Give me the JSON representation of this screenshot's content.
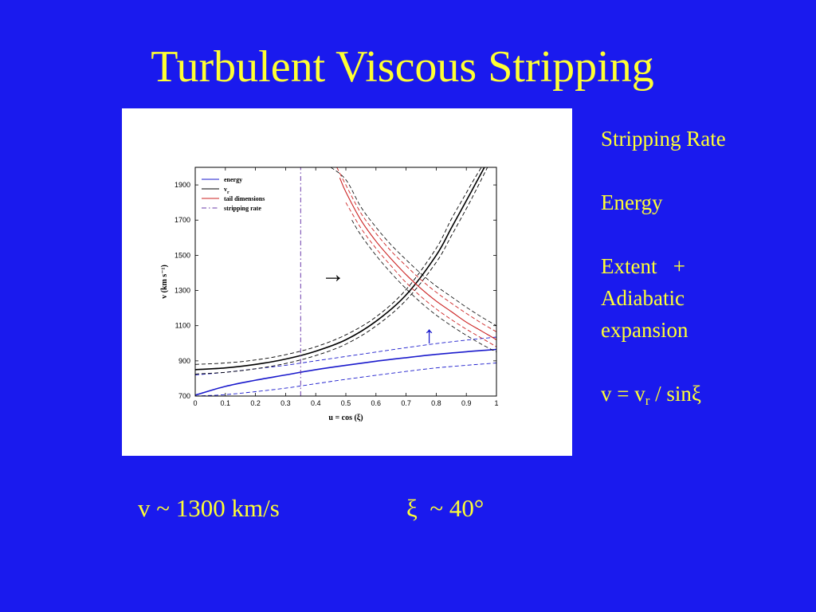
{
  "slide": {
    "title": "Turbulent Viscous Stripping",
    "side_notes": {
      "stripping_rate": "Stripping Rate",
      "energy": "Energy",
      "extent_plus": "Extent   +",
      "adiabatic": "Adiabatic",
      "expansion": "expansion",
      "formula_prefix": "v = v",
      "formula_sub": "r",
      "formula_suffix": " / sinξ"
    },
    "bottom": {
      "velocity": "v ~ 1300 km/s",
      "angle": "ξ  ~ 40°"
    },
    "annotations": {
      "right_arrow": "→",
      "up_arrow": "↑"
    }
  },
  "chart_data": {
    "type": "line",
    "xlabel": "u = cos (ξ)",
    "ylabel": "v (km s⁻¹)",
    "xlim": [
      0,
      1
    ],
    "ylim": [
      700,
      2000
    ],
    "xticks": [
      0,
      0.1,
      0.2,
      0.3,
      0.4,
      0.5,
      0.6,
      0.7,
      0.8,
      0.9,
      1
    ],
    "xtick_labels": [
      "0",
      "0.1",
      "0.2",
      "0.3",
      "0.4",
      "0.5",
      "0.6",
      "0.7",
      "0.8",
      "0.9",
      "1"
    ],
    "yticks": [
      700,
      900,
      1100,
      1300,
      1500,
      1700,
      1900
    ],
    "ytick_labels": [
      "700",
      "900",
      "1100",
      "1300",
      "1500",
      "1700",
      "1900"
    ],
    "grid": false,
    "legend_position": "top-left",
    "legend": [
      {
        "label": "energy",
        "color": "#1a1acc",
        "dash": "solid"
      },
      {
        "label": "v",
        "sub": "r",
        "color": "#000000",
        "dash": "solid"
      },
      {
        "label": "tail dimensions",
        "color": "#cc2222",
        "dash": "solid"
      },
      {
        "label": "stripping rate",
        "color": "#6a3aa8",
        "dash": "dashdot"
      }
    ],
    "series": [
      {
        "name": "energy",
        "color": "#1a1acc",
        "style": "solid",
        "width": 1.6,
        "x": [
          0,
          0.1,
          0.2,
          0.3,
          0.4,
          0.5,
          0.6,
          0.7,
          0.8,
          0.9,
          1
        ],
        "y": [
          705,
          755,
          790,
          820,
          850,
          875,
          898,
          918,
          937,
          952,
          965
        ]
      },
      {
        "role": "band",
        "color": "#1a1acc",
        "style": "dashed",
        "width": 0.9,
        "x": [
          0,
          0.1,
          0.2,
          0.3,
          0.4,
          0.5,
          0.6,
          0.7,
          0.8,
          0.9,
          1
        ],
        "y": [
          820,
          835,
          855,
          875,
          900,
          925,
          950,
          975,
          998,
          1018,
          1035
        ]
      },
      {
        "role": "band",
        "color": "#1a1acc",
        "style": "dashed",
        "width": 0.9,
        "x": [
          0,
          0.1,
          0.2,
          0.3,
          0.4,
          0.5,
          0.6,
          0.7,
          0.8,
          0.9,
          1
        ],
        "y": [
          700,
          708,
          725,
          745,
          770,
          795,
          818,
          840,
          860,
          875,
          888
        ]
      },
      {
        "name": "v_r",
        "color": "#000000",
        "style": "solid",
        "width": 1.6,
        "x": [
          0,
          0.1,
          0.2,
          0.3,
          0.4,
          0.5,
          0.6,
          0.7,
          0.8,
          0.85,
          0.9,
          0.93,
          0.96
        ],
        "y": [
          850,
          860,
          880,
          910,
          955,
          1020,
          1125,
          1275,
          1500,
          1655,
          1810,
          1905,
          2000
        ]
      },
      {
        "role": "band",
        "color": "#000000",
        "style": "dashed",
        "width": 0.9,
        "x": [
          0,
          0.1,
          0.2,
          0.3,
          0.4,
          0.5,
          0.6,
          0.7,
          0.8,
          0.85,
          0.9,
          0.925,
          0.95
        ],
        "y": [
          880,
          888,
          905,
          935,
          980,
          1048,
          1150,
          1305,
          1540,
          1705,
          1855,
          1930,
          2000
        ]
      },
      {
        "role": "band",
        "color": "#000000",
        "style": "dashed",
        "width": 0.9,
        "x": [
          0,
          0.1,
          0.2,
          0.3,
          0.4,
          0.5,
          0.6,
          0.7,
          0.8,
          0.85,
          0.9,
          0.935,
          0.97
        ],
        "y": [
          825,
          835,
          855,
          885,
          930,
          995,
          1098,
          1245,
          1460,
          1610,
          1765,
          1880,
          2000
        ]
      },
      {
        "name": "tail dimensions",
        "color": "#cc2222",
        "style": "solid",
        "width": 1.1,
        "x": [
          0.48,
          0.5,
          0.55,
          0.6,
          0.65,
          0.7,
          0.75,
          0.8,
          0.85,
          0.9,
          0.95,
          1
        ],
        "y": [
          1940,
          1860,
          1700,
          1580,
          1480,
          1390,
          1310,
          1240,
          1180,
          1120,
          1070,
          1020
        ]
      },
      {
        "role": "band",
        "color": "#cc2222",
        "style": "dashed",
        "width": 0.9,
        "x": [
          0.47,
          0.5,
          0.55,
          0.6,
          0.65,
          0.7,
          0.75,
          0.8,
          0.85,
          0.9,
          0.95,
          1
        ],
        "y": [
          2000,
          1900,
          1740,
          1625,
          1525,
          1440,
          1360,
          1290,
          1228,
          1170,
          1115,
          1065
        ]
      },
      {
        "role": "band",
        "color": "#cc2222",
        "style": "dashed",
        "width": 0.9,
        "x": [
          0.5,
          0.55,
          0.6,
          0.65,
          0.7,
          0.75,
          0.8,
          0.85,
          0.9,
          0.95,
          1
        ],
        "y": [
          1800,
          1655,
          1540,
          1440,
          1345,
          1265,
          1195,
          1135,
          1080,
          1030,
          980
        ]
      },
      {
        "role": "outer-band",
        "color": "#000000",
        "style": "dashed",
        "width": 0.8,
        "x": [
          0.45,
          0.5,
          0.55,
          0.6,
          0.65,
          0.7,
          0.75,
          0.8,
          0.85,
          0.9,
          0.95,
          1
        ],
        "y": [
          2000,
          1930,
          1775,
          1660,
          1560,
          1475,
          1395,
          1325,
          1265,
          1205,
          1150,
          1100
        ]
      },
      {
        "role": "outer-band",
        "color": "#000000",
        "style": "dashed",
        "width": 0.8,
        "x": [
          0.52,
          0.55,
          0.6,
          0.65,
          0.7,
          0.75,
          0.8,
          0.85,
          0.9,
          0.95,
          1
        ],
        "y": [
          1700,
          1615,
          1500,
          1400,
          1310,
          1230,
          1160,
          1100,
          1045,
          995,
          950
        ]
      },
      {
        "name": "stripping rate",
        "color": "#6a3aa8",
        "style": "dashdot",
        "width": 1.0,
        "x": [
          0.35,
          0.35
        ],
        "y": [
          700,
          2000
        ]
      }
    ]
  }
}
